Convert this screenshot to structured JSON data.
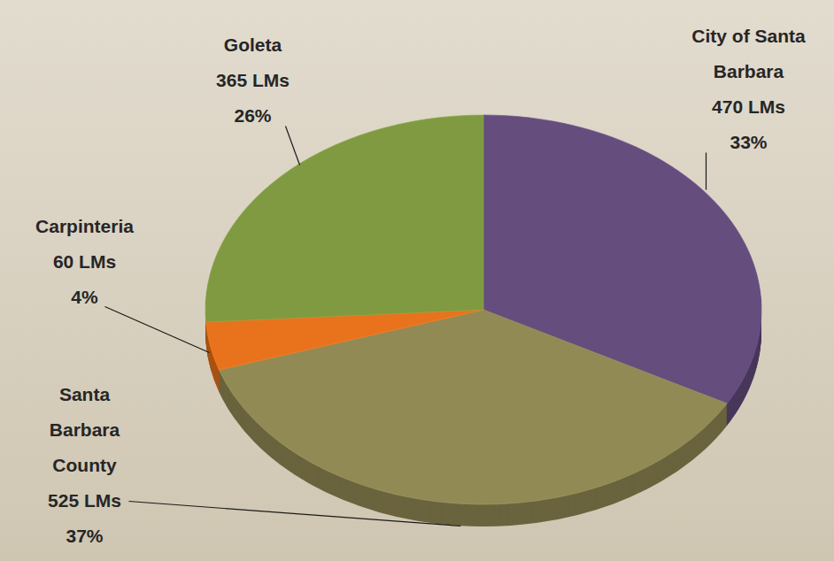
{
  "chart_data": {
    "type": "pie",
    "categories": [
      "City of Santa Barbara",
      "Santa Barbara County",
      "Carpinteria",
      "Goleta"
    ],
    "values": [
      33,
      37,
      4,
      26
    ],
    "value_labels": [
      "33%",
      "37%",
      "4%",
      "26%"
    ],
    "count_labels": [
      "470 LMs",
      "525 LMs",
      "60 LMs",
      "365 LMs"
    ],
    "colors": [
      "#654d7e",
      "#928a55",
      "#e8731c",
      "#7f9a41"
    ],
    "data_labels": true
  }
}
